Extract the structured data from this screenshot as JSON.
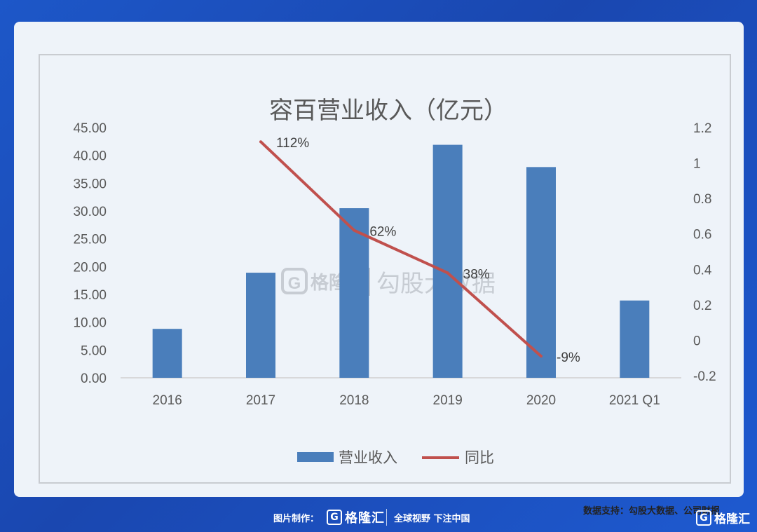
{
  "chart_data": {
    "type": "bar+line",
    "title": "容百营业收入（亿元）",
    "categories": [
      "2016",
      "2017",
      "2018",
      "2019",
      "2020",
      "2021 Q1"
    ],
    "series": [
      {
        "name": "营业收入",
        "type": "bar",
        "axis": "left",
        "values": [
          8.8,
          18.9,
          30.5,
          41.9,
          37.9,
          13.9
        ]
      },
      {
        "name": "同比",
        "type": "line",
        "axis": "right",
        "values": [
          null,
          1.12,
          0.62,
          0.38,
          -0.09,
          null
        ],
        "labels": [
          "",
          "112%",
          "62%",
          "38%",
          "-9%",
          ""
        ]
      }
    ],
    "y_left": {
      "min": 0,
      "max": 45,
      "step": 5,
      "tick_labels": [
        "0.00",
        "5.00",
        "10.00",
        "15.00",
        "20.00",
        "25.00",
        "30.00",
        "35.00",
        "40.00",
        "45.00"
      ]
    },
    "y_right": {
      "min": -0.2,
      "max": 1.2,
      "step": 0.2,
      "tick_labels": [
        "-0.2",
        "0",
        "0.2",
        "0.4",
        "0.6",
        "0.8",
        "1",
        "1.2"
      ]
    },
    "legend": "bottom-center",
    "grid": false,
    "colors": {
      "bar": "#4a7ebb",
      "line": "#c0504d"
    }
  },
  "watermark": {
    "brand": "格隆汇",
    "text": "勾股大数据"
  },
  "source_note": "数据支持：勾股大数据、公司财报",
  "footer": {
    "credit": "图片制作：",
    "brand": "格隆汇",
    "slogan": "全球视野 下注中国",
    "corner_brand": "格隆汇",
    "logo_letter": "G"
  }
}
